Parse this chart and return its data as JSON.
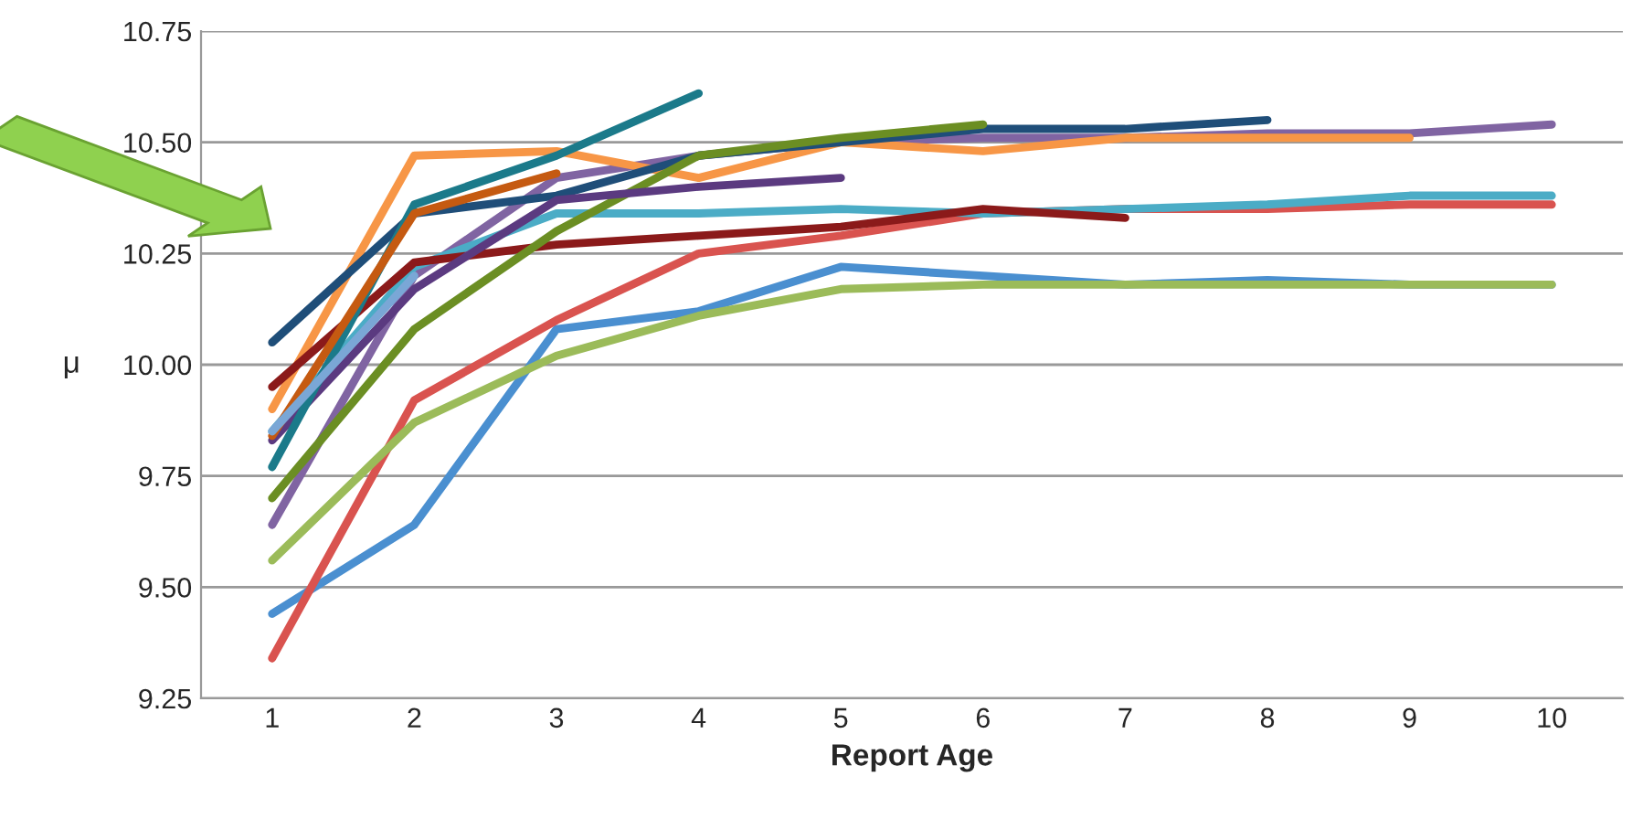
{
  "chart_data": {
    "type": "line",
    "xlabel": "Report Age",
    "ylabel": "μ",
    "x": [
      1,
      2,
      3,
      4,
      5,
      6,
      7,
      8,
      9,
      10
    ],
    "xlim": [
      0.5,
      10.5
    ],
    "xticks": [
      1,
      2,
      3,
      4,
      5,
      6,
      7,
      8,
      9,
      10
    ],
    "ylim": [
      9.25,
      10.75
    ],
    "yticks": [
      {
        "value": 9.25,
        "label": "9.25"
      },
      {
        "value": 9.5,
        "label": "9.50"
      },
      {
        "value": 9.75,
        "label": "9.75"
      },
      {
        "value": 10.0,
        "label": "10.00"
      },
      {
        "value": 10.25,
        "label": "10.25"
      },
      {
        "value": 10.5,
        "label": "10.50"
      },
      {
        "value": 10.75,
        "label": "10.75"
      }
    ],
    "grid": "y",
    "legend": false,
    "marker": "none",
    "line_style": "solid",
    "series": [
      {
        "color": "#4a8fd0",
        "values": [
          9.44,
          9.64,
          10.08,
          10.12,
          10.22,
          10.2,
          10.18,
          10.19,
          10.18,
          10.18
        ]
      },
      {
        "color": "#d9534f",
        "values": [
          9.34,
          9.92,
          10.1,
          10.25,
          10.29,
          10.34,
          10.35,
          10.35,
          10.36,
          10.36
        ]
      },
      {
        "color": "#9bbb59",
        "values": [
          9.56,
          9.87,
          10.02,
          10.11,
          10.17,
          10.18,
          10.18,
          10.18,
          10.18,
          10.18
        ]
      },
      {
        "color": "#8064a2",
        "values": [
          9.64,
          10.2,
          10.42,
          10.47,
          10.5,
          10.51,
          10.51,
          10.52,
          10.52,
          10.54
        ]
      },
      {
        "color": "#4bacc6",
        "values": [
          9.85,
          10.22,
          10.34,
          10.34,
          10.35,
          10.34,
          10.35,
          10.36,
          10.38,
          10.38
        ]
      },
      {
        "color": "#f79646",
        "values": [
          9.9,
          10.47,
          10.48,
          10.42,
          10.5,
          10.48,
          10.51,
          10.51,
          10.51,
          null
        ]
      },
      {
        "color": "#1f4e79",
        "values": [
          10.05,
          10.34,
          10.38,
          10.47,
          10.5,
          10.53,
          10.53,
          10.55,
          null,
          null
        ]
      },
      {
        "color": "#8b1a1a",
        "values": [
          9.95,
          10.23,
          10.27,
          10.29,
          10.31,
          10.35,
          10.33,
          null,
          null,
          null
        ]
      },
      {
        "color": "#6b8e23",
        "values": [
          9.7,
          10.08,
          10.3,
          10.47,
          10.51,
          10.54,
          null,
          null,
          null,
          null
        ]
      },
      {
        "color": "#5b3a80",
        "values": [
          9.83,
          10.17,
          10.37,
          10.4,
          10.42,
          null,
          null,
          null,
          null,
          null
        ]
      },
      {
        "color": "#1b7a8a",
        "values": [
          9.77,
          10.36,
          10.47,
          10.61,
          null,
          null,
          null,
          null,
          null,
          null
        ]
      },
      {
        "color": "#c55a11",
        "values": [
          9.84,
          10.34,
          10.43,
          null,
          null,
          null,
          null,
          null,
          null,
          null
        ]
      },
      {
        "color": "#7aa7d6",
        "values": [
          9.85,
          10.2,
          null,
          null,
          null,
          null,
          null,
          null,
          null,
          null
        ]
      }
    ]
  }
}
